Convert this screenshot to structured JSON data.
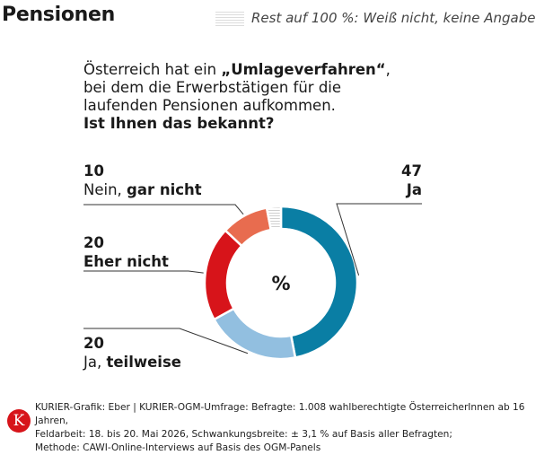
{
  "title": "Pensionen",
  "rest_legend": "Rest auf 100 %: Weiß nicht, keine Angabe",
  "question": {
    "prefix": "Österreich hat ein ",
    "bold_term": "„Umlageverfahren“",
    "suffix": ", bei dem die Erwerbstätigen für die laufenden Pensionen aufkommen.",
    "bold_question": "Ist Ihnen das bekannt?"
  },
  "center_symbol": "%",
  "chart_data": {
    "type": "pie",
    "unit": "%",
    "slices": [
      {
        "label": "Ja",
        "value": 47,
        "color": "#0a7ea4",
        "label_prefix": "",
        "label_bold": "Ja",
        "display": "47"
      },
      {
        "label": "Ja, teilweise",
        "value": 20,
        "color": "#92bfe0",
        "label_prefix": "Ja, ",
        "label_bold": "teilweise",
        "display": "20"
      },
      {
        "label": "Eher nicht",
        "value": 20,
        "color": "#d7141a",
        "label_prefix": "",
        "label_bold": "Eher nicht",
        "display": "20"
      },
      {
        "label": "Nein, gar nicht",
        "value": 10,
        "color": "#e86c4f",
        "label_prefix": "Nein, ",
        "label_bold": "gar nicht",
        "display": "10"
      },
      {
        "label": "Weiß nicht, keine Angabe",
        "value": 3,
        "color": "#e6e6e6",
        "label_prefix": "",
        "label_bold": "",
        "display": ""
      }
    ]
  },
  "source_lines": [
    "KURIER-Grafik: Eber | KURIER-OGM-Umfrage: Befragte: 1.008 wahlberechtigte ÖsterreicherInnen ab 16 Jahren,",
    "Feldarbeit: 18. bis 20. Mai 2026, Schwankungsbreite: ± 3,1 % auf Basis aller Befragten;",
    "Methode: CAWI-Online-Interviews auf Basis des OGM-Panels"
  ],
  "logo_letter": "K"
}
